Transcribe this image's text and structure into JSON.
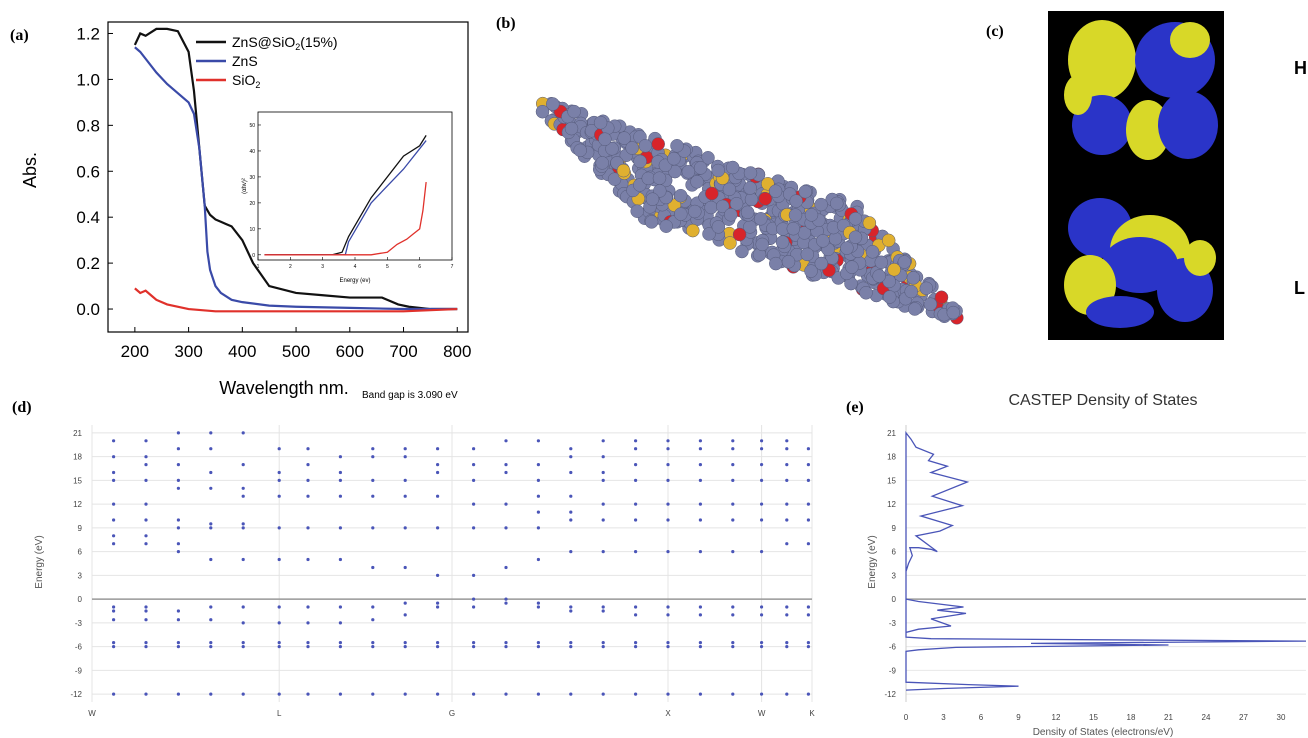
{
  "panels": {
    "a": {
      "tag": "(a)"
    },
    "b": {
      "tag": "(b)"
    },
    "c": {
      "tag": "(c)",
      "homo_label": "H",
      "lumo_label": "L"
    },
    "d": {
      "tag": "(d)",
      "band_gap_note": "Band gap is 3.090 eV"
    },
    "e": {
      "tag": "(e)"
    }
  },
  "colors": {
    "zns_sio2": "#111111",
    "zns": "#3a4aa8",
    "sio2": "#e0312b",
    "band_points": "#4a55b8",
    "dos_line": "#4a55b8",
    "orbital_blue": "#2a34c8",
    "orbital_yellow": "#d8d828",
    "sphere_gray": "#7a80a8",
    "sphere_red": "#d8242a",
    "sphere_gold": "#e0b030"
  },
  "chart_data": [
    {
      "id": "a",
      "type": "line",
      "xlabel": "Wavelength nm.",
      "ylabel": "Abs.",
      "xlim": [
        150,
        820
      ],
      "ylim": [
        -0.1,
        1.25
      ],
      "xticks": [
        "200",
        "300",
        "400",
        "500",
        "600",
        "700",
        "800"
      ],
      "yticks": [
        "0.0",
        "0.2",
        "0.4",
        "0.6",
        "0.8",
        "1.0",
        "1.2"
      ],
      "legend_position": "top-center",
      "series": [
        {
          "name": "ZnS@SiO₂(15%)",
          "legend_main": "ZnS@SiO",
          "legend_sub": "2",
          "legend_tail": "(15%)",
          "x": [
            200,
            210,
            220,
            240,
            260,
            280,
            300,
            310,
            320,
            330,
            340,
            350,
            360,
            370,
            380,
            400,
            420,
            450,
            500,
            550,
            600,
            640,
            660,
            670,
            690,
            710,
            750,
            800
          ],
          "y": [
            1.15,
            1.2,
            1.19,
            1.22,
            1.22,
            1.21,
            1.12,
            0.95,
            0.7,
            0.45,
            0.41,
            0.39,
            0.38,
            0.37,
            0.36,
            0.3,
            0.2,
            0.1,
            0.07,
            0.06,
            0.05,
            0.05,
            0.05,
            0.04,
            0.02,
            0.01,
            0.0,
            0.0
          ]
        },
        {
          "name": "ZnS",
          "legend_main": "ZnS",
          "legend_sub": "",
          "legend_tail": "",
          "x": [
            200,
            210,
            220,
            240,
            260,
            280,
            300,
            310,
            320,
            330,
            335,
            340,
            350,
            360,
            380,
            400,
            450,
            500,
            600,
            700,
            800
          ],
          "y": [
            1.14,
            1.12,
            1.09,
            1.03,
            0.98,
            0.94,
            0.9,
            0.85,
            0.7,
            0.45,
            0.25,
            0.17,
            0.1,
            0.07,
            0.04,
            0.03,
            0.015,
            0.01,
            0.005,
            0.0,
            0.0
          ]
        },
        {
          "name": "SiO₂",
          "legend_main": "SiO",
          "legend_sub": "2",
          "legend_tail": "",
          "x": [
            200,
            210,
            220,
            230,
            240,
            260,
            300,
            350,
            400,
            500,
            600,
            700,
            800
          ],
          "y": [
            0.09,
            0.07,
            0.08,
            0.06,
            0.04,
            0.02,
            0.0,
            -0.01,
            -0.01,
            -0.01,
            -0.01,
            -0.01,
            0.0
          ]
        }
      ]
    },
    {
      "id": "a-inset",
      "type": "line",
      "xlabel": "Energy (ev)",
      "ylabel": "(αhv)²",
      "xlim": [
        1,
        7
      ],
      "ylim": [
        -2,
        55
      ],
      "xticks": [
        "1",
        "2",
        "3",
        "4",
        "5",
        "6",
        "7"
      ],
      "yticks": [
        "0",
        "10",
        "20",
        "30",
        "40",
        "50"
      ],
      "series": [
        {
          "name": "ZnS@SiO2",
          "x": [
            1.2,
            3.3,
            3.6,
            3.8,
            4.5,
            5.5,
            6.0,
            6.2
          ],
          "y": [
            0,
            0,
            1,
            7,
            22,
            38,
            42,
            46
          ]
        },
        {
          "name": "ZnS",
          "x": [
            1.2,
            3.5,
            3.7,
            3.8,
            4.5,
            5.5,
            6.2
          ],
          "y": [
            0,
            0,
            0,
            5,
            20,
            33,
            44
          ]
        },
        {
          "name": "SiO2",
          "x": [
            1.2,
            4.5,
            5.0,
            5.3,
            5.6,
            5.8,
            6.0,
            6.1,
            6.2
          ],
          "y": [
            0,
            0,
            1,
            4,
            6,
            8,
            10,
            17,
            28
          ]
        }
      ]
    },
    {
      "id": "d",
      "type": "scatter",
      "xlabel": "",
      "ylabel": "Energy (eV)",
      "ylim": [
        -13,
        22
      ],
      "yticks": [
        "-12",
        "-9",
        "-6",
        "-3",
        "0",
        "3",
        "6",
        "9",
        "12",
        "15",
        "18",
        "21"
      ],
      "kpoint_labels": [
        "W",
        "L",
        "G",
        "X",
        "W",
        "K"
      ],
      "kpoint_positions": [
        0,
        0.26,
        0.5,
        0.8,
        0.93,
        1.0
      ],
      "columns": [
        {
          "k": 0.03,
          "e": [
            -12,
            -6,
            -5.5,
            -2.6,
            -1.5,
            -1,
            7,
            8,
            10,
            12,
            15,
            16,
            18,
            20
          ]
        },
        {
          "k": 0.075,
          "e": [
            -12,
            -6,
            -5.5,
            -2.6,
            -1.5,
            -1,
            7,
            8,
            10,
            12,
            15,
            17,
            18,
            20
          ]
        },
        {
          "k": 0.12,
          "e": [
            -12,
            -6,
            -5.5,
            -2.6,
            -1.5,
            6,
            7,
            9,
            10,
            14,
            15,
            17,
            19,
            21
          ]
        },
        {
          "k": 0.165,
          "e": [
            -12,
            -6,
            -5.5,
            -2.6,
            -1,
            5,
            9,
            9.5,
            14,
            16,
            19,
            21
          ]
        },
        {
          "k": 0.21,
          "e": [
            -12,
            -6,
            -5.5,
            -3,
            -1,
            5,
            9,
            9.5,
            13,
            14,
            17,
            21
          ]
        },
        {
          "k": 0.26,
          "e": [
            -12,
            -6,
            -5.5,
            -3,
            -1,
            5,
            9,
            13,
            15,
            16,
            19
          ]
        },
        {
          "k": 0.3,
          "e": [
            -12,
            -6,
            -5.5,
            -3,
            -1,
            5,
            9,
            13,
            15,
            17,
            19
          ]
        },
        {
          "k": 0.345,
          "e": [
            -12,
            -6,
            -5.5,
            -3,
            -1,
            5,
            9,
            13,
            15,
            16,
            18
          ]
        },
        {
          "k": 0.39,
          "e": [
            -12,
            -6,
            -5.5,
            -2.6,
            -1,
            4,
            9,
            13,
            15,
            18,
            19
          ]
        },
        {
          "k": 0.435,
          "e": [
            -12,
            -6,
            -5.5,
            -2,
            -0.5,
            4,
            9,
            13,
            15,
            18,
            19
          ]
        },
        {
          "k": 0.48,
          "e": [
            -12,
            -6,
            -5.5,
            -1,
            -0.5,
            3,
            9,
            13,
            16,
            17,
            19
          ]
        },
        {
          "k": 0.53,
          "e": [
            -12,
            -6,
            -5.5,
            -1,
            0,
            3,
            9,
            12,
            15,
            17,
            19
          ]
        },
        {
          "k": 0.575,
          "e": [
            -12,
            -6,
            -5.5,
            -0.5,
            0,
            4,
            9,
            12,
            16,
            17,
            20
          ]
        },
        {
          "k": 0.62,
          "e": [
            -12,
            -6,
            -5.5,
            -1,
            -0.5,
            5,
            9,
            11,
            13,
            15,
            17,
            20
          ]
        },
        {
          "k": 0.665,
          "e": [
            -12,
            -6,
            -5.5,
            -1.5,
            -1,
            6,
            10,
            11,
            13,
            16,
            18,
            19
          ]
        },
        {
          "k": 0.71,
          "e": [
            -12,
            -6,
            -5.5,
            -1.5,
            -1,
            6,
            10,
            12,
            15,
            16,
            18,
            20
          ]
        },
        {
          "k": 0.755,
          "e": [
            -12,
            -6,
            -5.5,
            -2,
            -1,
            6,
            10,
            12,
            15,
            17,
            19,
            20
          ]
        },
        {
          "k": 0.8,
          "e": [
            -12,
            -6,
            -5.5,
            -2,
            -1,
            6,
            10,
            12,
            15,
            17,
            19,
            20
          ]
        },
        {
          "k": 0.845,
          "e": [
            -12,
            -6,
            -5.5,
            -2,
            -1,
            6,
            10,
            12,
            15,
            17,
            19,
            20
          ]
        },
        {
          "k": 0.89,
          "e": [
            -12,
            -6,
            -5.5,
            -2,
            -1,
            6,
            10,
            12,
            15,
            17,
            19,
            20
          ]
        },
        {
          "k": 0.93,
          "e": [
            -12,
            -6,
            -5.5,
            -2,
            -1,
            6,
            10,
            12,
            15,
            17,
            19,
            20
          ]
        },
        {
          "k": 0.965,
          "e": [
            -12,
            -6,
            -5.5,
            -2,
            -1,
            7,
            10,
            12,
            15,
            17,
            19,
            20
          ]
        },
        {
          "k": 0.995,
          "e": [
            -12,
            -6,
            -5.5,
            -2,
            -1,
            7,
            10,
            12,
            15,
            17,
            19
          ]
        }
      ]
    },
    {
      "id": "e",
      "type": "line",
      "title": "CASTEP Density of States",
      "xlabel": "Density of States (electrons/eV)",
      "ylabel": "Energy (eV)",
      "xlim": [
        0,
        32
      ],
      "ylim": [
        -13,
        22
      ],
      "xticks": [
        "0",
        "3",
        "6",
        "9",
        "12",
        "15",
        "18",
        "21",
        "24",
        "27",
        "30"
      ],
      "yticks": [
        "-12",
        "-9",
        "-6",
        "-3",
        "0",
        "3",
        "6",
        "9",
        "12",
        "15",
        "18",
        "21"
      ],
      "series": [
        {
          "name": "DOS",
          "x": [
            0,
            0.2,
            0.5,
            0.3,
            1,
            2,
            2.5,
            0.8,
            2.7,
            3.7,
            1.2,
            4.5,
            2.1,
            4.9,
            2,
            3.3,
            1.8,
            2.2,
            0.8,
            0.4,
            0,
            0,
            1,
            4.6,
            2.5,
            4.8,
            2.0,
            3.6,
            1.0,
            0,
            0,
            0,
            2,
            32,
            10,
            21,
            4,
            1,
            0,
            0,
            5,
            9,
            3,
            0
          ],
          "y": [
            3.5,
            4.5,
            5.5,
            6.5,
            6.5,
            6.3,
            6.0,
            8.0,
            8.6,
            9.3,
            10.5,
            11.8,
            13.0,
            14.8,
            16.0,
            16.8,
            17.5,
            18.3,
            19.2,
            20.2,
            21,
            0,
            -0.3,
            -1.0,
            -1.4,
            -1.8,
            -2.5,
            -3.4,
            -3.8,
            -4.2,
            0,
            -4.8,
            -5.0,
            -5.3,
            -5.6,
            -5.8,
            -6.1,
            -6.4,
            -6.6,
            -10.5,
            -10.8,
            -11.0,
            -11.3,
            -11.5
          ]
        }
      ]
    }
  ]
}
